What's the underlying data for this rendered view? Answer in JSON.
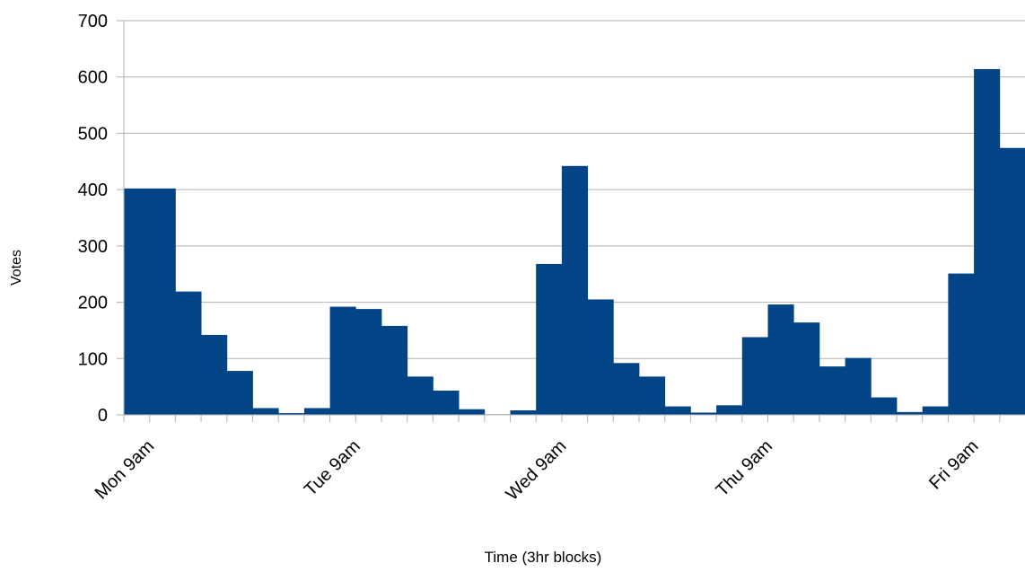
{
  "chart_data": {
    "type": "bar",
    "title": "",
    "xlabel": "Time (3hr blocks)",
    "ylabel": "Votes",
    "ylim": [
      0,
      700
    ],
    "yticks": [
      0,
      100,
      200,
      300,
      400,
      500,
      600,
      700
    ],
    "grid": true,
    "legend": "none",
    "bar_color": "#034486",
    "x_tick_labels": [
      {
        "index": 1,
        "label": "Mon 9am"
      },
      {
        "index": 9,
        "label": "Tue 9am"
      },
      {
        "index": 17,
        "label": "Wed 9am"
      },
      {
        "index": 25,
        "label": "Thu 9am"
      },
      {
        "index": 33,
        "label": "Fri 9am"
      }
    ],
    "values": [
      402,
      402,
      219,
      142,
      78,
      12,
      3,
      12,
      192,
      188,
      158,
      68,
      43,
      10,
      1,
      8,
      268,
      442,
      205,
      92,
      68,
      15,
      4,
      17,
      138,
      196,
      164,
      86,
      101,
      31,
      5,
      15,
      251,
      614,
      474
    ]
  }
}
